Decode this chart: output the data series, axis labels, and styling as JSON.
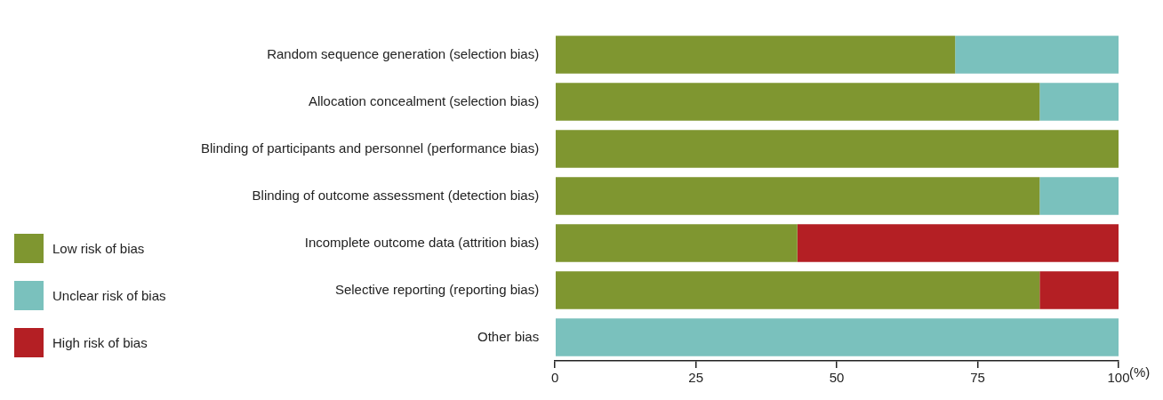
{
  "chart_data": {
    "type": "bar",
    "orientation": "horizontal",
    "stacked": true,
    "xlabel": "(%)",
    "categories": [
      "Random sequence generation (selection bias)",
      "Allocation concealment (selection bias)",
      "Blinding of participants and personnel (performance bias)",
      "Blinding of outcome assessment (detection bias)",
      "Incomplete outcome data (attrition bias)",
      "Selective reporting (reporting bias)",
      "Other bias"
    ],
    "series": [
      {
        "name": "Low risk of bias",
        "color": "#7f9630",
        "values": [
          71,
          86,
          100,
          86,
          43,
          86,
          0
        ]
      },
      {
        "name": "Unclear risk of bias",
        "color": "#7ac1bd",
        "values": [
          29,
          14,
          0,
          14,
          0,
          0,
          100
        ]
      },
      {
        "name": "High risk of bias",
        "color": "#b41f24",
        "values": [
          0,
          0,
          0,
          0,
          57,
          14,
          0
        ]
      }
    ],
    "xlim": [
      0,
      100
    ],
    "xticks": [
      0,
      25,
      50,
      75,
      100
    ],
    "grid": false,
    "legend": "left"
  }
}
